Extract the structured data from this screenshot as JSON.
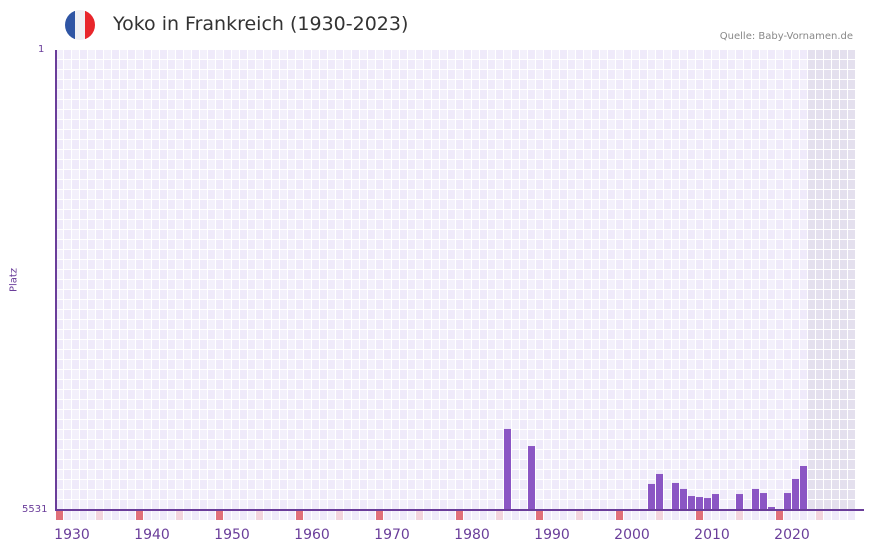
{
  "header": {
    "title": "Yoko in Frankreich (1930-2023)",
    "source": "Quelle: Baby-Vornamen.de",
    "flag_colors": [
      "#2f55a4",
      "#f0f0f4",
      "#e8262b"
    ]
  },
  "colors": {
    "bar": "#8b56c4",
    "axis": "#6a3d9a",
    "tick_decade": "#e0707a",
    "tick_five": "#f3d5de",
    "grid_a": "#efeafa",
    "grid_b": "#f3f0fb",
    "future_shade": "#e4e0ee"
  },
  "chart_data": {
    "type": "bar",
    "title": "Yoko in Frankreich (1930-2023)",
    "xlabel": "",
    "ylabel": "Platz",
    "y_inverted": true,
    "ylim": [
      1,
      5531
    ],
    "y_ticks": [
      "1",
      "5531"
    ],
    "x_range": [
      1930,
      2029
    ],
    "x_ticks": [
      1930,
      1940,
      1950,
      1960,
      1970,
      1980,
      1990,
      2000,
      2010,
      2020
    ],
    "categories": [
      1986,
      1989,
      2004,
      2005,
      2007,
      2008,
      2009,
      2010,
      2011,
      2012,
      2015,
      2017,
      2018,
      2019,
      2021,
      2022,
      2023
    ],
    "values": [
      4557,
      4762,
      5218,
      5098,
      5206,
      5278,
      5363,
      5375,
      5387,
      5339,
      5339,
      5278,
      5327,
      5495,
      5327,
      5158,
      5002
    ],
    "grid": true,
    "legend": null
  }
}
